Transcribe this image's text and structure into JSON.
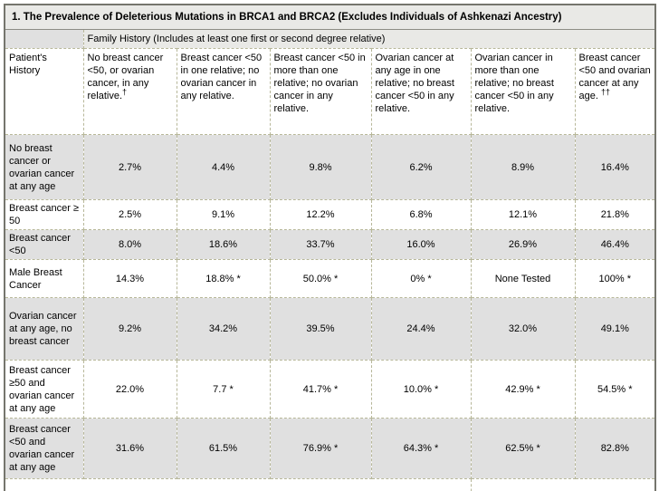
{
  "table": {
    "title": "1. The Prevalence of Deleterious Mutations in BRCA1 and BRCA2 (Excludes Individuals of Ashkenazi Ancestry)",
    "family_history_header": "Family History (Includes at least one first or second degree relative)",
    "patient_history_header": "Patient's History",
    "columns": [
      {
        "label": "No breast cancer <50, or ovarian cancer, in any relative.",
        "footnote": "†"
      },
      {
        "label": "Breast cancer <50 in one relative; no ovarian cancer in any relative.",
        "footnote": ""
      },
      {
        "label": "Breast cancer <50 in more than one relative; no ovarian cancer in any relative.",
        "footnote": ""
      },
      {
        "label": "Ovarian cancer at any age in one relative; no breast cancer <50 in any relative.",
        "footnote": ""
      },
      {
        "label": "Ovarian cancer in more than one relative; no breast cancer <50 in any relative.",
        "footnote": ""
      },
      {
        "label": "Breast cancer <50 and ovarian cancer at any age. ",
        "footnote": "††"
      }
    ],
    "rows": [
      {
        "label": "No breast cancer or ovarian cancer at any age",
        "shaded": true,
        "values": [
          "2.7%",
          "4.4%",
          "9.8%",
          "6.2%",
          "8.9%",
          "16.4%"
        ]
      },
      {
        "label": "Breast cancer ≥ 50",
        "shaded": false,
        "values": [
          "2.5%",
          "9.1%",
          "12.2%",
          "6.8%",
          "12.1%",
          "21.8%"
        ]
      },
      {
        "label": "Breast cancer <50",
        "shaded": true,
        "values": [
          "8.0%",
          "18.6%",
          "33.7%",
          "16.0%",
          "26.9%",
          "46.4%"
        ]
      },
      {
        "label": "Male Breast Cancer",
        "shaded": false,
        "values": [
          "14.3%",
          "18.8% *",
          "50.0% *",
          "0% *",
          "None Tested",
          "100% *"
        ]
      },
      {
        "label": "Ovarian cancer at any age, no breast cancer",
        "shaded": true,
        "values": [
          "9.2%",
          "34.2%",
          "39.5%",
          "24.4%",
          "32.0%",
          "49.1%"
        ]
      },
      {
        "label": "Breast cancer ≥50 and ovarian cancer at any age",
        "shaded": false,
        "values": [
          "22.0%",
          "7.7 *",
          "41.7% *",
          "10.0% *",
          "42.9% *",
          "54.5% *"
        ]
      },
      {
        "label": "Breast cancer <50 and ovarian cancer at any age",
        "shaded": true,
        "values": [
          "31.6%",
          "61.5%",
          "76.9% *",
          "64.3% *",
          "62.5% *",
          "82.8%"
        ]
      }
    ]
  },
  "colors": {
    "shaded_row": "#e0e0e0",
    "header_band": "#e9e9e6",
    "border_outer": "#75756d",
    "border_inner": "#b7b799",
    "text": "#000000"
  }
}
